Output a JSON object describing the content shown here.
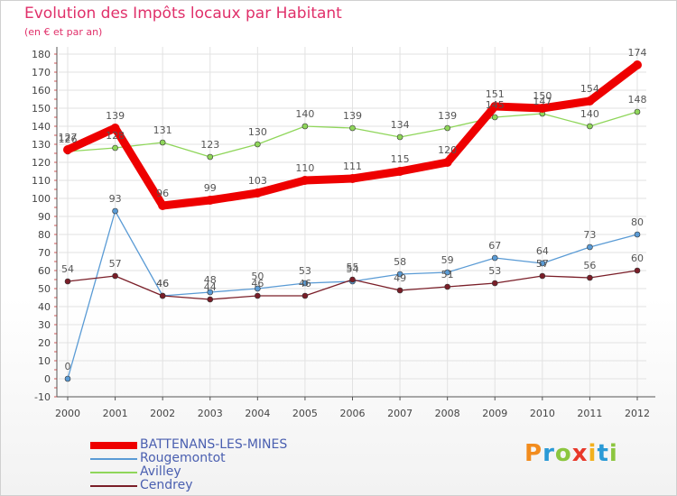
{
  "title": "Evolution des Impôts locaux par Habitant",
  "subtitle": "(en € et par an)",
  "logo": {
    "text": "Proxiti",
    "colors": [
      "#f28c1e",
      "#2a9ad6",
      "#8cc63f",
      "#e8382a",
      "#f2b01e",
      "#2a9ad6",
      "#8cc63f"
    ]
  },
  "chart_data": {
    "type": "line",
    "title": "Evolution des Impôts locaux par Habitant",
    "subtitle": "(en € et par an)",
    "categories": [
      "2000",
      "2001",
      "2002",
      "2003",
      "2004",
      "2005",
      "2006",
      "2007",
      "2008",
      "2009",
      "2010",
      "2011",
      "2012"
    ],
    "ylim": [
      -10,
      180
    ],
    "yticks": [
      -10,
      0,
      10,
      20,
      30,
      40,
      50,
      60,
      70,
      80,
      90,
      100,
      110,
      120,
      130,
      140,
      150,
      160,
      170,
      180
    ],
    "grid": true,
    "legend_position": "bottom-left",
    "series": [
      {
        "name": "BATTENANS-LES-MINES",
        "color": "#ee0000",
        "values": [
          127,
          139,
          96,
          99,
          103,
          110,
          111,
          115,
          120,
          151,
          150,
          154,
          174
        ]
      },
      {
        "name": "Rougemontot",
        "color": "#5a9bd5",
        "values": [
          0,
          93,
          46,
          48,
          50,
          53,
          54,
          58,
          59,
          67,
          64,
          73,
          80
        ]
      },
      {
        "name": "Avilley",
        "color": "#8fd65a",
        "values": [
          126,
          128,
          131,
          123,
          130,
          140,
          139,
          134,
          139,
          145,
          147,
          140,
          148
        ]
      },
      {
        "name": "Cendrey",
        "color": "#7a1e28",
        "values": [
          54,
          57,
          46,
          44,
          46,
          46,
          55,
          49,
          51,
          53,
          57,
          56,
          60
        ]
      }
    ]
  }
}
